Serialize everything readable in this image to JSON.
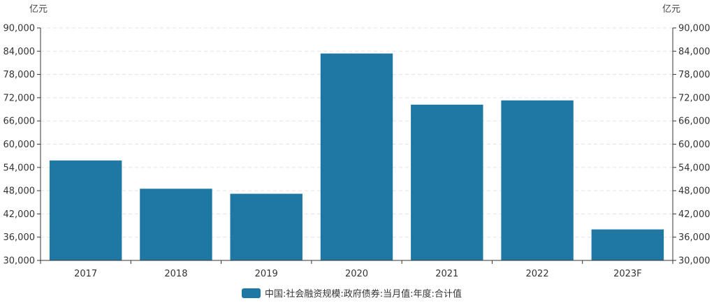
{
  "chart_data": {
    "type": "bar",
    "categories": [
      "2017",
      "2018",
      "2019",
      "2020",
      "2021",
      "2022",
      "2023F"
    ],
    "series": [
      {
        "name": "中国:社会融资规模:政府债券:当月值:年度:合计值",
        "values": [
          55800,
          48500,
          47200,
          83400,
          70200,
          71300,
          38000
        ],
        "color": "#1f78a4"
      }
    ],
    "ylim": [
      30000,
      90000
    ],
    "yticks": [
      "30,000",
      "36,000",
      "42,000",
      "48,000",
      "54,000",
      "60,000",
      "66,000",
      "72,000",
      "78,000",
      "84,000",
      "90,000"
    ],
    "ytick_values": [
      30000,
      36000,
      42000,
      48000,
      54000,
      60000,
      66000,
      72000,
      78000,
      84000,
      90000
    ],
    "left_unit": "亿元",
    "right_unit": "亿元",
    "grid": true,
    "legend_position": "bottom-center"
  }
}
